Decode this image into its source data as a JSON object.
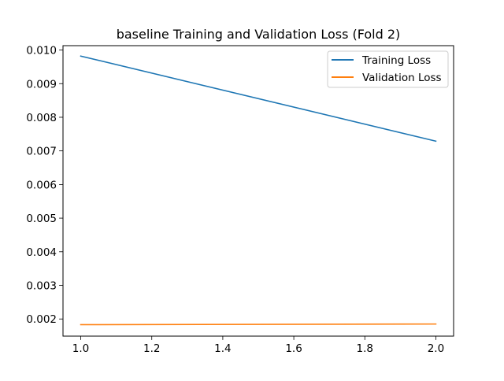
{
  "chart_data": {
    "type": "line",
    "title": "baseline Training and Validation Loss (Fold 2)",
    "xlabel": "",
    "ylabel": "",
    "xlim": [
      0.95,
      2.05
    ],
    "ylim": [
      0.00149,
      0.01013
    ],
    "xticks": [
      1.0,
      1.2,
      1.4,
      1.6,
      1.8,
      2.0
    ],
    "xtick_labels": [
      "1.0",
      "1.2",
      "1.4",
      "1.6",
      "1.8",
      "2.0"
    ],
    "yticks": [
      0.002,
      0.003,
      0.004,
      0.005,
      0.006,
      0.007,
      0.008,
      0.009,
      0.01
    ],
    "ytick_labels": [
      "0.002",
      "0.003",
      "0.004",
      "0.005",
      "0.006",
      "0.007",
      "0.008",
      "0.009",
      "0.010"
    ],
    "grid": false,
    "legend_position": "top-right",
    "x": [
      1.0,
      2.0
    ],
    "series": [
      {
        "name": "Training Loss",
        "color": "#1f77b4",
        "values": [
          0.00982,
          0.00729
        ]
      },
      {
        "name": "Validation Loss",
        "color": "#ff7f0e",
        "values": [
          0.00183,
          0.00185
        ]
      }
    ]
  }
}
